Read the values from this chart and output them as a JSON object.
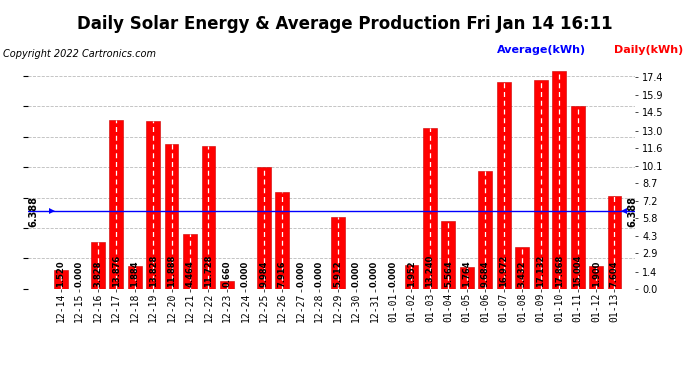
{
  "title": "Daily Solar Energy & Average Production Fri Jan 14 16:11",
  "copyright": "Copyright 2022 Cartronics.com",
  "legend_average": "Average(kWh)",
  "legend_daily": "Daily(kWh)",
  "average_value": 6.388,
  "categories": [
    "12-14",
    "12-15",
    "12-16",
    "12-17",
    "12-18",
    "12-19",
    "12-20",
    "12-21",
    "12-22",
    "12-23",
    "12-24",
    "12-25",
    "12-26",
    "12-27",
    "12-28",
    "12-29",
    "12-30",
    "12-31",
    "01-01",
    "01-02",
    "01-03",
    "01-04",
    "01-05",
    "01-06",
    "01-07",
    "01-08",
    "01-09",
    "01-10",
    "01-11",
    "01-12",
    "01-13"
  ],
  "values": [
    1.52,
    0.0,
    3.828,
    13.876,
    1.884,
    13.828,
    11.888,
    4.464,
    11.728,
    0.66,
    0.0,
    9.984,
    7.916,
    0.0,
    0.0,
    5.912,
    0.0,
    0.0,
    0.0,
    1.952,
    13.24,
    5.564,
    1.764,
    9.684,
    16.972,
    3.432,
    17.132,
    17.868,
    15.004,
    1.9,
    7.604
  ],
  "bar_color": "#ff0000",
  "bar_edge_color": "#cc0000",
  "average_line_color": "#0000ff",
  "background_color": "#ffffff",
  "grid_color": "#bbbbbb",
  "ylabel_right": [
    "0.0",
    "1.4",
    "2.9",
    "4.3",
    "5.8",
    "7.2",
    "8.7",
    "10.1",
    "11.6",
    "13.0",
    "14.5",
    "15.9",
    "17.4"
  ],
  "yticks_right": [
    0.0,
    1.4,
    2.9,
    4.3,
    5.8,
    7.2,
    8.7,
    10.1,
    11.6,
    13.0,
    14.5,
    15.9,
    17.4
  ],
  "ylim": [
    0,
    18.5
  ],
  "title_fontsize": 12,
  "label_fontsize": 6,
  "tick_fontsize": 7,
  "avg_label_fontsize": 7,
  "copyright_fontsize": 7
}
